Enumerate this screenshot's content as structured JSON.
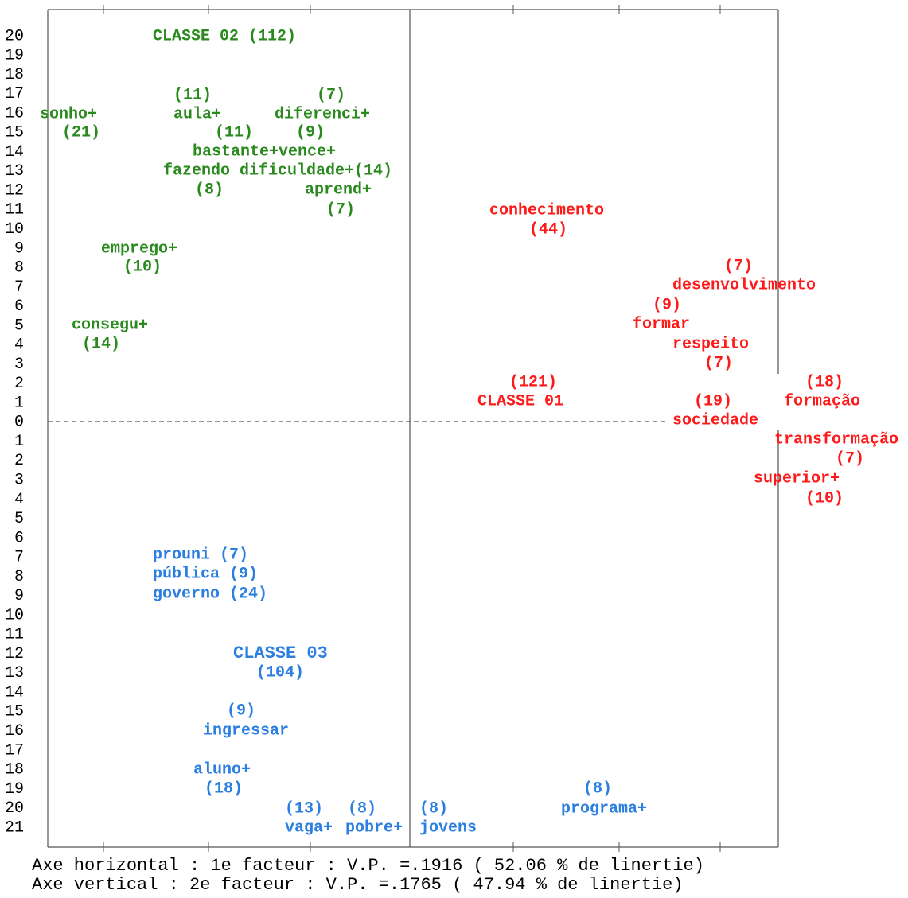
{
  "row_labels": [
    20,
    19,
    18,
    17,
    16,
    15,
    14,
    13,
    12,
    11,
    10,
    9,
    8,
    7,
    6,
    5,
    4,
    3,
    2,
    1,
    0,
    1,
    2,
    3,
    4,
    5,
    6,
    7,
    8,
    9,
    10,
    11,
    12,
    13,
    14,
    15,
    16,
    17,
    18,
    19,
    20,
    21
  ],
  "classes": [
    {
      "color": "#2a8a1e",
      "words": [
        "CLASSE 02 (112)",
        "(11)",
        "(7)",
        "sonho+",
        "aula+",
        "diferenci+",
        "(21)",
        "(11)",
        "(9)",
        "bastante+vence+",
        "fazendo dificuldade+(14)",
        "(8)",
        "aprend+",
        "(7)",
        "emprego+",
        "(10)",
        "consegu+",
        "(14)"
      ]
    },
    {
      "color": "#ff1a1a",
      "words": [
        "conhecimento",
        "(44)",
        "(7)",
        "desenvolvimento",
        "(9)",
        "formar",
        "respeito",
        "(7)",
        "(121)",
        "(18)",
        "CLASSE  01",
        "(19)",
        "formação",
        "sociedade",
        "transformação",
        "(7)",
        "superior+",
        "(10)"
      ]
    },
    {
      "color": "#2a7fe0",
      "words": [
        "prouni (7)",
        "pública (9)",
        "governo (24)",
        "CLASSE 03",
        "(104)",
        "(9)",
        "ingressar",
        "aluno+",
        "(18)",
        "(8)",
        "(13)",
        "(8)",
        "(8)",
        "programa+",
        "vaga+",
        "pobre+",
        "jovens"
      ]
    }
  ],
  "footer": [
    "Axe horizontal : 1e facteur : V.P. =.1916 (   52.06 % de linertie)",
    "Axe vertical   : 2e facteur : V.P. =.1765 (   47.94 % de linertie)"
  ]
}
